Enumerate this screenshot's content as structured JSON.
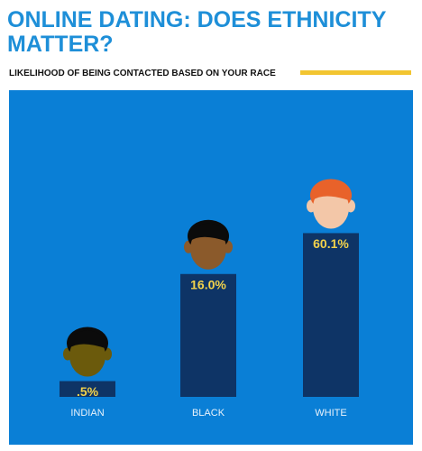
{
  "chart_data": {
    "type": "bar",
    "title": "ONLINE DATING: DOES ETHNICITY MATTER?",
    "subtitle": "LIKELIHOOD OF BEING CONTACTED BASED ON YOUR RACE",
    "categories": [
      "INDIAN",
      "BLACK",
      "WHITE"
    ],
    "values": [
      0.5,
      16.0,
      60.1
    ],
    "value_labels": [
      ".5%",
      "16.0%",
      "60.1%"
    ],
    "color": "#0e3466",
    "ylim": [
      0.3,
      100
    ],
    "log_scale": true
  }
}
